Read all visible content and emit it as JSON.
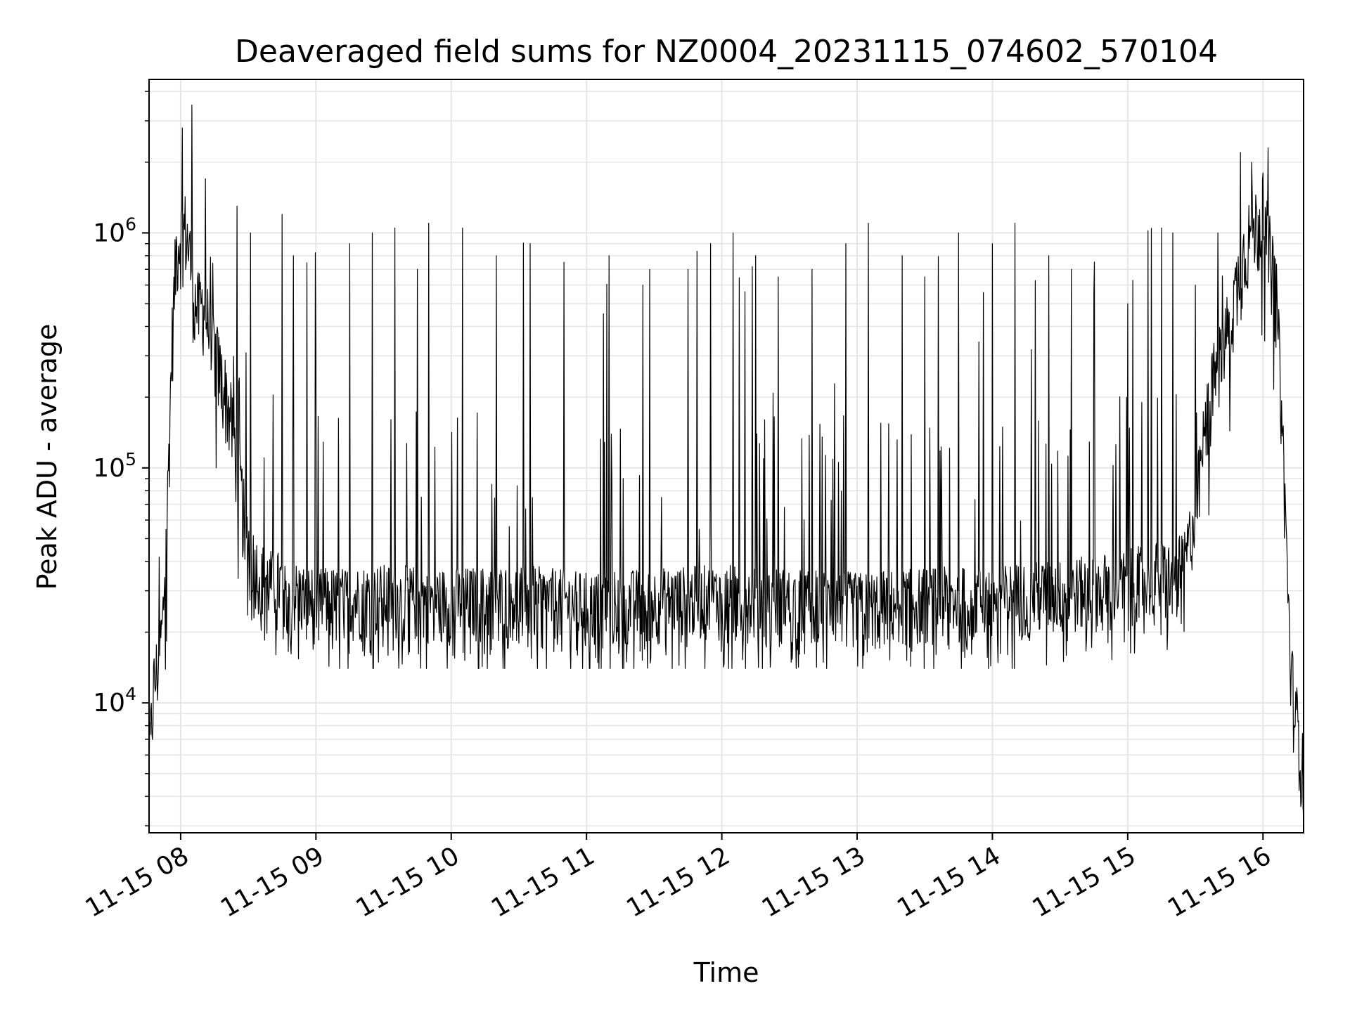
{
  "chart_data": {
    "type": "line",
    "title": "Deaveraged field sums for NZ0004_20231115_074602_570104",
    "xlabel": "Time",
    "ylabel": "Peak ADU - average",
    "y_scale": "log",
    "grid": true,
    "line_color": "#000000",
    "grid_color": "#e6e6e6",
    "xlim": [
      "2023-11-15 07:46",
      "2023-11-15 16:18"
    ],
    "ylim": [
      2800,
      4500000
    ],
    "x_ticks": [
      "11-15 08",
      "11-15 09",
      "11-15 10",
      "11-15 11",
      "11-15 12",
      "11-15 13",
      "11-15 14",
      "11-15 15",
      "11-15 16"
    ],
    "y_ticks": [
      {
        "value": 10000,
        "base": "10",
        "exp": "4"
      },
      {
        "value": 100000,
        "base": "10",
        "exp": "5"
      },
      {
        "value": 1000000,
        "base": "10",
        "exp": "6"
      }
    ],
    "series": [
      {
        "x": [
          "07:46",
          "07:48",
          "07:50",
          "07:52",
          "07:54",
          "07:56",
          "07:58",
          "08:00",
          "08:02",
          "08:04",
          "08:06",
          "08:08",
          "08:10",
          "08:12",
          "08:14",
          "08:16",
          "08:18",
          "08:20",
          "08:22",
          "08:24",
          "08:26",
          "08:28",
          "08:30",
          "08:32",
          "08:34",
          "08:36",
          "08:38",
          "08:40",
          "08:42",
          "08:45",
          "08:50",
          "08:55",
          "09:00",
          "09:30",
          "10:00",
          "10:30",
          "11:00",
          "11:30",
          "12:00",
          "12:30",
          "13:00",
          "13:30",
          "14:00",
          "14:30",
          "15:00",
          "15:10",
          "15:20",
          "15:25",
          "15:30",
          "15:33",
          "15:36",
          "15:39",
          "15:42",
          "15:45",
          "15:48",
          "15:51",
          "15:54",
          "15:57",
          "16:00",
          "16:02",
          "16:04",
          "16:06",
          "16:08",
          "16:10",
          "16:12",
          "16:14",
          "16:16",
          "16:18"
        ],
        "y": [
          5000,
          11000,
          14000,
          20000,
          60000,
          300000,
          800000,
          950000,
          1000000,
          800000,
          500000,
          450000,
          480000,
          400000,
          330000,
          280000,
          230000,
          200000,
          160000,
          120000,
          90000,
          60000,
          45000,
          38000,
          34000,
          32000,
          31000,
          30000,
          30000,
          29000,
          27000,
          26000,
          25000,
          26000,
          25000,
          26000,
          24000,
          25000,
          26000,
          25000,
          24000,
          25000,
          26000,
          27000,
          30000,
          32000,
          33000,
          35000,
          60000,
          110000,
          180000,
          250000,
          320000,
          400000,
          550000,
          750000,
          950000,
          1050000,
          1050000,
          900000,
          700000,
          500000,
          200000,
          60000,
          15000,
          9000,
          7000,
          4500
        ],
        "spikes": [
          [
            "08:05",
            3500000
          ],
          [
            "08:11",
            1700000
          ],
          [
            "08:25",
            1300000
          ],
          [
            "08:31",
            1000000
          ],
          [
            "08:45",
            1200000
          ],
          [
            "08:50",
            800000
          ],
          [
            "09:00",
            300000
          ],
          [
            "09:15",
            900000
          ],
          [
            "09:25",
            1000000
          ],
          [
            "09:35",
            1050000
          ],
          [
            "09:45",
            700000
          ],
          [
            "09:50",
            1100000
          ],
          [
            "10:05",
            1050000
          ],
          [
            "10:20",
            800000
          ],
          [
            "10:35",
            900000
          ],
          [
            "10:50",
            750000
          ],
          [
            "11:10",
            800000
          ],
          [
            "11:25",
            600000
          ],
          [
            "11:45",
            700000
          ],
          [
            "11:55",
            900000
          ],
          [
            "12:05",
            1000000
          ],
          [
            "12:15",
            800000
          ],
          [
            "12:25",
            650000
          ],
          [
            "12:40",
            700000
          ],
          [
            "12:55",
            900000
          ],
          [
            "13:05",
            1100000
          ],
          [
            "13:20",
            800000
          ],
          [
            "13:30",
            650000
          ],
          [
            "13:45",
            1000000
          ],
          [
            "14:00",
            900000
          ],
          [
            "14:10",
            1100000
          ],
          [
            "14:25",
            800000
          ],
          [
            "14:35",
            700000
          ],
          [
            "14:45",
            550000
          ],
          [
            "15:00",
            500000
          ],
          [
            "15:15",
            1050000
          ],
          [
            "15:30",
            600000
          ],
          [
            "15:40",
            1000000
          ],
          [
            "15:50",
            2200000
          ],
          [
            "15:55",
            2000000
          ],
          [
            "16:00",
            1800000
          ]
        ],
        "noise_floor": 14000
      }
    ]
  }
}
